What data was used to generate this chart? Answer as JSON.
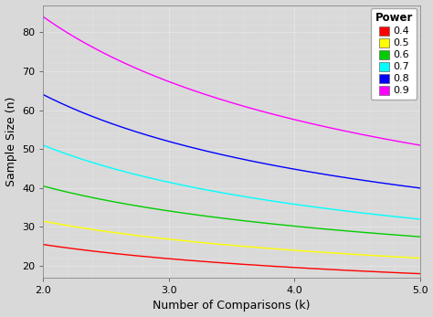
{
  "xlabel": "Number of Comparisons (k)",
  "ylabel": "Sample Size (n)",
  "xlim": [
    2.0,
    5.0
  ],
  "ylim": [
    17,
    87
  ],
  "xticks": [
    2.0,
    3.0,
    4.0,
    5.0
  ],
  "yticks": [
    20,
    30,
    40,
    50,
    60,
    70,
    80
  ],
  "background_color": "#d9d9d9",
  "plot_bg_color": "#d9d9d9",
  "grid_color": "#ffffff",
  "power_levels": [
    "0.4",
    "0.5",
    "0.6",
    "0.7",
    "0.8",
    "0.9"
  ],
  "colors": [
    "#ff0000",
    "#ffff00",
    "#00cc00",
    "#00ffff",
    "#0000ff",
    "#ff00ff"
  ],
  "legend_title": "Power",
  "anchor_values": {
    "0.4": {
      "k2": 25.5,
      "k5": 18.0
    },
    "0.5": {
      "k2": 31.5,
      "k5": 22.0
    },
    "0.6": {
      "k2": 40.5,
      "k5": 27.5
    },
    "0.7": {
      "k2": 51.0,
      "k5": 32.0
    },
    "0.8": {
      "k2": 64.0,
      "k5": 40.0
    },
    "0.9": {
      "k2": 84.0,
      "k5": 51.0
    }
  }
}
